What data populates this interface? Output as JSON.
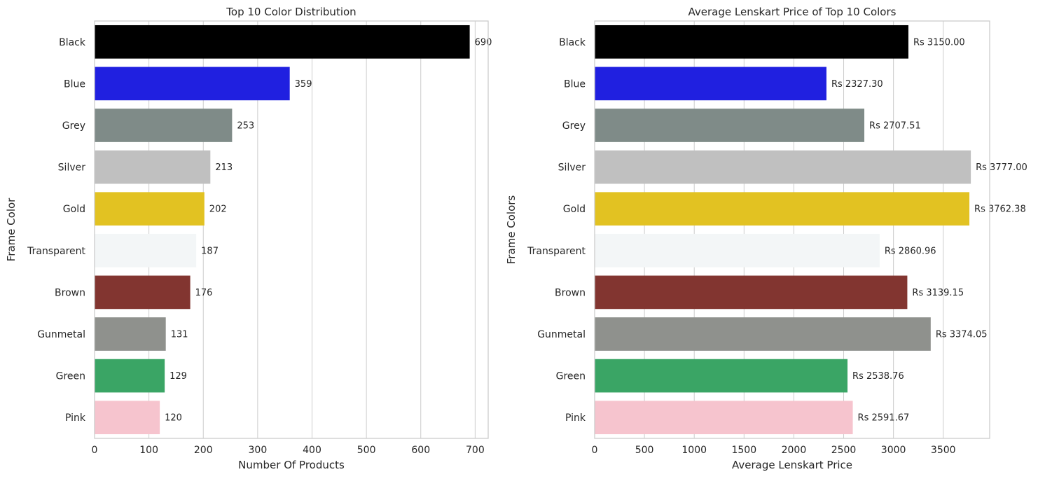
{
  "chart_data": [
    {
      "type": "bar",
      "orientation": "horizontal",
      "title": "Top 10 Color Distribution",
      "xlabel": "Number Of Products",
      "ylabel": "Frame Color",
      "categories": [
        "Black",
        "Blue",
        "Grey",
        "Silver",
        "Gold",
        "Transparent",
        "Brown",
        "Gunmetal",
        "Green",
        "Pink"
      ],
      "values": [
        690,
        359,
        253,
        213,
        202,
        187,
        176,
        131,
        129,
        120
      ],
      "value_labels": [
        "690",
        "359",
        "253",
        "213",
        "202",
        "187",
        "176",
        "131",
        "129",
        "120"
      ],
      "colors": [
        "#000000",
        "#2020e0",
        "#7f8b88",
        "#c0c0c0",
        "#e2c222",
        "#f3f6f7",
        "#823530",
        "#8f918d",
        "#3aa565",
        "#f6c4ce"
      ],
      "xlim": [
        0,
        724
      ],
      "xticks": [
        0,
        100,
        200,
        300,
        400,
        500,
        600,
        700
      ],
      "xtick_labels": [
        "0",
        "100",
        "200",
        "300",
        "400",
        "500",
        "600",
        "700"
      ],
      "grid": "x"
    },
    {
      "type": "bar",
      "orientation": "horizontal",
      "title": "Average Lenskart Price of Top 10 Colors",
      "xlabel": "Average Lenskart Price",
      "ylabel": "Frame Colors",
      "categories": [
        "Black",
        "Blue",
        "Grey",
        "Silver",
        "Gold",
        "Transparent",
        "Brown",
        "Gunmetal",
        "Green",
        "Pink"
      ],
      "values": [
        3150.0,
        2327.3,
        2707.51,
        3777.0,
        3762.38,
        2860.96,
        3139.15,
        3374.05,
        2538.76,
        2591.67
      ],
      "value_labels": [
        "Rs 3150.00",
        "Rs 2327.30",
        "Rs 2707.51",
        "Rs 3777.00",
        "Rs 3762.38",
        "Rs 2860.96",
        "Rs 3139.15",
        "Rs 3374.05",
        "Rs 2538.76",
        "Rs 2591.67"
      ],
      "colors": [
        "#000000",
        "#2020e0",
        "#7f8b88",
        "#c0c0c0",
        "#e2c222",
        "#f3f6f7",
        "#823530",
        "#8f918d",
        "#3aa565",
        "#f6c4ce"
      ],
      "xlim": [
        0,
        3966
      ],
      "xticks": [
        0,
        500,
        1000,
        1500,
        2000,
        2500,
        3000,
        3500
      ],
      "xtick_labels": [
        "0",
        "500",
        "1000",
        "1500",
        "2000",
        "2500",
        "3000",
        "3500"
      ],
      "grid": "x"
    }
  ]
}
